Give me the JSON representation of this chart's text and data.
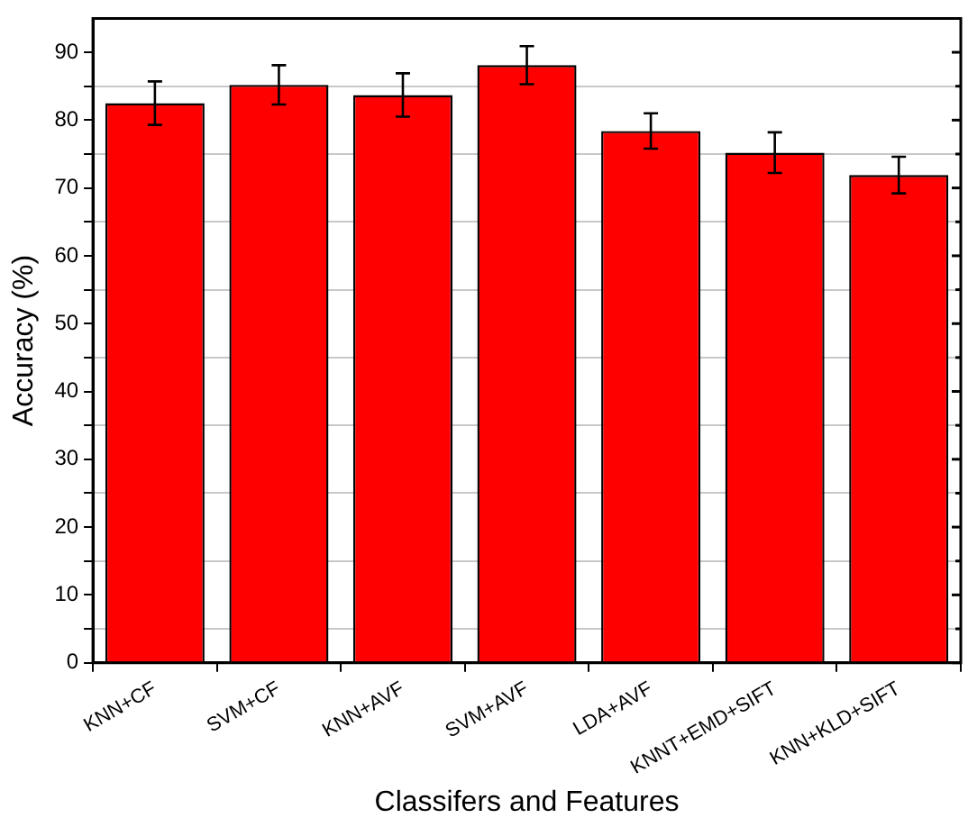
{
  "chart_data": {
    "type": "bar",
    "xlabel": "Classifers and Features",
    "ylabel": "Accuracy (%)",
    "categories": [
      "KNN+CF",
      "SVM+CF",
      "KNN+AVF",
      "SVM+AVF",
      "LDA+AVF",
      "KNNT+EMD+SIFT",
      "KNN+KLD+SIFT"
    ],
    "values": [
      82.5,
      85.2,
      83.7,
      88.1,
      78.4,
      75.2,
      71.9
    ],
    "errors": [
      3.2,
      2.9,
      3.2,
      2.8,
      2.6,
      3.0,
      2.7
    ],
    "color": "#ff0000",
    "ylim": [
      0,
      95
    ],
    "yticks": [
      0,
      {
        "value": 5,
        "label": null
      },
      10,
      {
        "value": 15,
        "label": null
      },
      20,
      {
        "value": 25,
        "label": null
      },
      30,
      {
        "value": 35,
        "label": null
      },
      40,
      {
        "value": 45,
        "label": null
      },
      50,
      {
        "value": 55,
        "label": null
      },
      60,
      {
        "value": 65,
        "label": null
      },
      70,
      {
        "value": 75,
        "label": null
      },
      80,
      {
        "value": 85,
        "label": null
      },
      90
    ],
    "grid": "y",
    "legend": false
  }
}
